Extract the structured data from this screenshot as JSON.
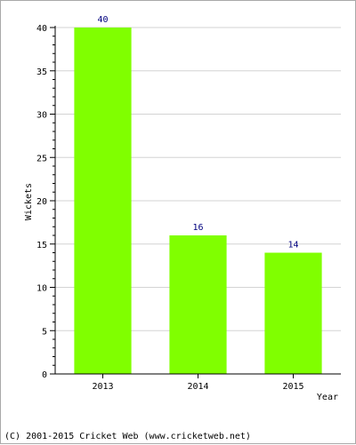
{
  "chart_data": {
    "type": "bar",
    "categories": [
      "2013",
      "2014",
      "2015"
    ],
    "values": [
      40,
      16,
      14
    ],
    "data_labels": [
      "40",
      "16",
      "14"
    ],
    "xlabel": "Year",
    "ylabel": "Wickets",
    "ylim": [
      0,
      40
    ],
    "yticks": [
      "0",
      "5",
      "10",
      "15",
      "20",
      "25",
      "30",
      "35",
      "40"
    ],
    "grid": true,
    "legend": "none",
    "colors": {
      "bar": "#80ff00",
      "value_label": "#00007f",
      "grid": "#d3d3d3",
      "axis": "#000000",
      "frame": "#a9a9a9"
    }
  },
  "footer": {
    "credit": "(C) 2001-2015 Cricket Web (www.cricketweb.net)"
  }
}
